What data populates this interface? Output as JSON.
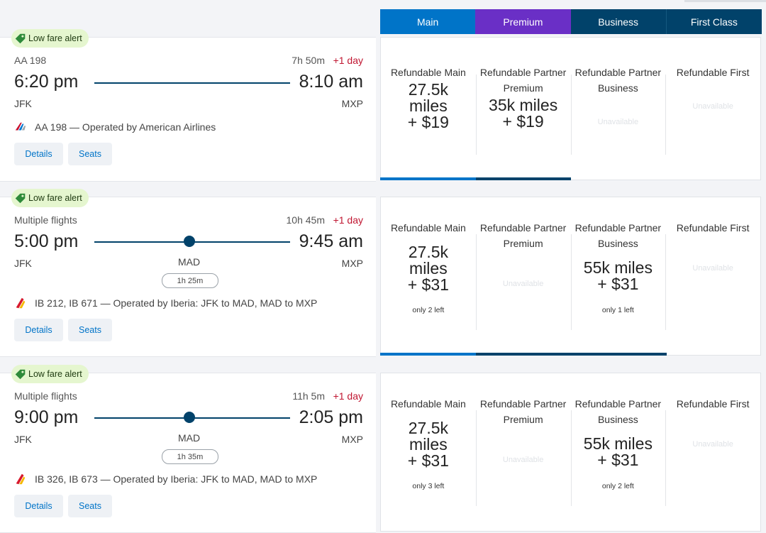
{
  "cabins": [
    "Main",
    "Premium",
    "Business",
    "First Class"
  ],
  "colors": {
    "main": "#0074c8",
    "premium": "#6a2fc6",
    "business": "#01426a",
    "first": "#01426a",
    "plus_day": "#c01631",
    "alert_bg": "#e5f6cf"
  },
  "icons": {
    "alert": "price-tag-icon",
    "aa_logo": "american-airlines-logo-icon",
    "ib_logo": "iberia-logo-icon"
  },
  "flights": [
    {
      "alert": "Low fare alert",
      "label": "AA 198",
      "duration": "7h 50m",
      "plus_day": "+1 day",
      "depart_time": "6:20 pm",
      "arrive_time": "8:10 am",
      "origin": "JFK",
      "destination": "MXP",
      "operated": "AA 198 — Operated by American Airlines",
      "details": "Details",
      "seats": "Seats",
      "fares": [
        {
          "name": "Refundable Main",
          "price": [
            "27.5k",
            "miles",
            "+ $19"
          ]
        },
        {
          "name": "Refundable Partner Premium",
          "price": [
            "35k miles",
            "+ $19"
          ]
        },
        {
          "name": "Refundable Partner Business",
          "price": [],
          "unavailable": "Unavailable"
        },
        {
          "name": "Refundable First",
          "price": [],
          "unavailable": "Unavailable"
        }
      ]
    },
    {
      "alert": "Low fare alert",
      "label": "Multiple flights",
      "duration": "10h 45m",
      "plus_day": "+1 day",
      "depart_time": "5:00 pm",
      "arrive_time": "9:45 am",
      "origin": "JFK",
      "destination": "MXP",
      "stop": "MAD",
      "layover": "1h 25m",
      "operated": "IB 212, IB 671 — Operated by Iberia: JFK to MAD, MAD to MXP",
      "details": "Details",
      "seats": "Seats",
      "fares": [
        {
          "name": "Refundable Main",
          "price": [
            "27.5k",
            "miles",
            "+ $31"
          ],
          "seats_left": "only 2 left"
        },
        {
          "name": "Refundable Partner Premium",
          "price": [],
          "unavailable": "Unavailable"
        },
        {
          "name": "Refundable Partner Business",
          "price": [
            "55k miles",
            "+ $31"
          ],
          "seats_left": "only 1 left"
        },
        {
          "name": "Refundable First",
          "price": [],
          "unavailable": "Unavailable"
        }
      ]
    },
    {
      "alert": "Low fare alert",
      "label": "Multiple flights",
      "duration": "11h 5m",
      "plus_day": "+1 day",
      "depart_time": "9:00 pm",
      "arrive_time": "2:05 pm",
      "origin": "JFK",
      "destination": "MXP",
      "stop": "MAD",
      "layover": "1h 35m",
      "operated": "IB 326, IB 673 — Operated by Iberia: JFK to MAD, MAD to MXP",
      "details": "Details",
      "seats": "Seats",
      "fares": [
        {
          "name": "Refundable Main",
          "price": [
            "27.5k",
            "miles",
            "+ $31"
          ],
          "seats_left": "only 3 left"
        },
        {
          "name": "Refundable Partner Premium",
          "price": [],
          "unavailable": "Unavailable"
        },
        {
          "name": "Refundable Partner Business",
          "price": [
            "55k miles",
            "+ $31"
          ],
          "seats_left": "only 2 left"
        },
        {
          "name": "Refundable First",
          "price": [],
          "unavailable": "Unavailable"
        }
      ]
    }
  ]
}
